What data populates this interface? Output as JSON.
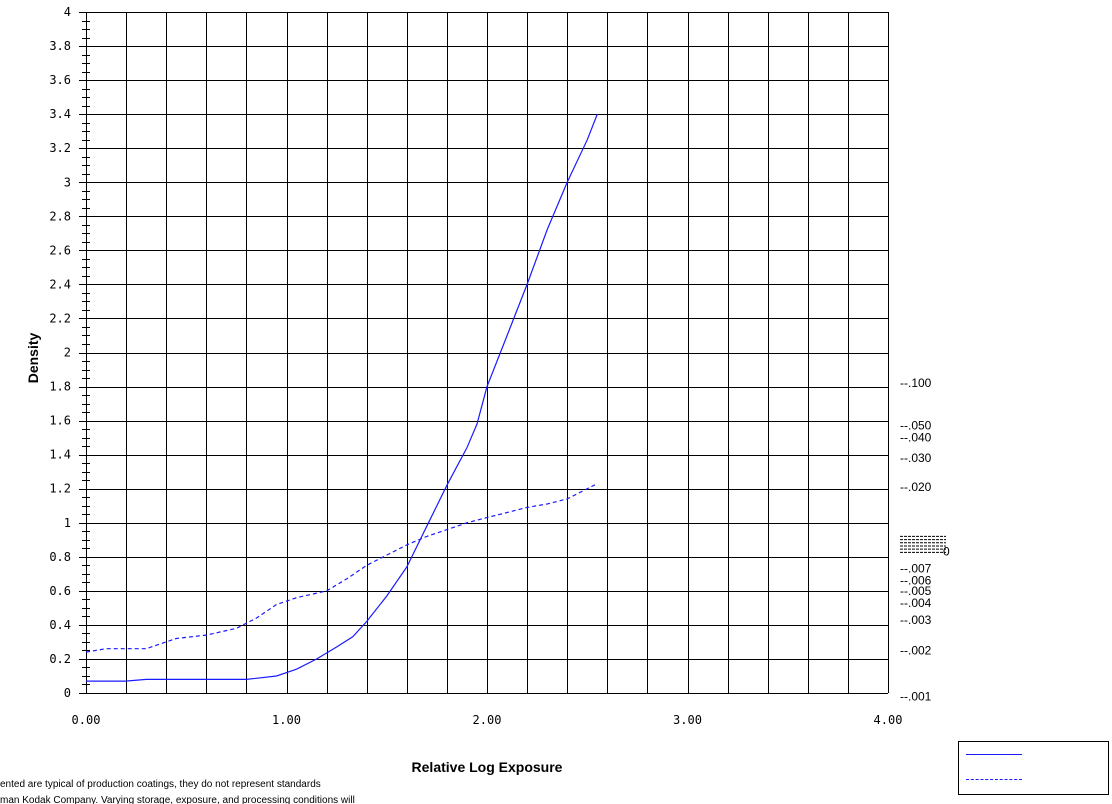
{
  "chart_data": {
    "type": "line",
    "xlabel": "Relative Log Exposure",
    "ylabel": "Density",
    "xlim": [
      0,
      4
    ],
    "ylim": [
      0,
      4
    ],
    "x_tick_labels": [
      "0.00",
      "1.00",
      "2.00",
      "3.00",
      "4.00"
    ],
    "y_tick_labels": [
      "0",
      "0.2",
      "0.4",
      "0.6",
      "0.8",
      "1",
      "1.2",
      "1.4",
      "1.6",
      "1.8",
      "2",
      "2.2",
      "2.4",
      "2.6",
      "2.8",
      "3",
      "3.2",
      "3.4",
      "3.6",
      "3.8",
      "4"
    ],
    "grid": true,
    "series": [
      {
        "style": "solid",
        "color": "#1a1aff",
        "points": [
          [
            0,
            0.07
          ],
          [
            0.2,
            0.07
          ],
          [
            0.3,
            0.08
          ],
          [
            0.5,
            0.08
          ],
          [
            0.8,
            0.08
          ],
          [
            0.95,
            0.1
          ],
          [
            1.05,
            0.14
          ],
          [
            1.15,
            0.2
          ],
          [
            1.25,
            0.27
          ],
          [
            1.33,
            0.33
          ],
          [
            1.4,
            0.42
          ],
          [
            1.5,
            0.57
          ],
          [
            1.6,
            0.74
          ],
          [
            1.7,
            0.98
          ],
          [
            1.8,
            1.22
          ],
          [
            1.9,
            1.44
          ],
          [
            1.95,
            1.58
          ],
          [
            2.0,
            1.8
          ],
          [
            2.1,
            2.1
          ],
          [
            2.2,
            2.4
          ],
          [
            2.3,
            2.72
          ],
          [
            2.4,
            3.0
          ],
          [
            2.5,
            3.25
          ],
          [
            2.55,
            3.4
          ]
        ]
      },
      {
        "style": "dashed",
        "color": "#1a1aff",
        "points": [
          [
            0,
            0.24
          ],
          [
            0.1,
            0.26
          ],
          [
            0.3,
            0.26
          ],
          [
            0.4,
            0.3
          ],
          [
            0.45,
            0.32
          ],
          [
            0.6,
            0.34
          ],
          [
            0.75,
            0.38
          ],
          [
            0.85,
            0.44
          ],
          [
            0.95,
            0.52
          ],
          [
            1.05,
            0.56
          ],
          [
            1.2,
            0.6
          ],
          [
            1.3,
            0.67
          ],
          [
            1.4,
            0.75
          ],
          [
            1.5,
            0.81
          ],
          [
            1.6,
            0.87
          ],
          [
            1.7,
            0.92
          ],
          [
            1.8,
            0.96
          ],
          [
            1.9,
            1.0
          ],
          [
            2.0,
            1.03
          ],
          [
            2.1,
            1.06
          ],
          [
            2.2,
            1.09
          ],
          [
            2.3,
            1.11
          ],
          [
            2.4,
            1.14
          ],
          [
            2.5,
            1.2
          ],
          [
            2.55,
            1.23
          ]
        ]
      }
    ],
    "right_scale_labels": [
      {
        "text": "--.100",
        "y": 1.82
      },
      {
        "text": "--.050",
        "y": 1.57
      },
      {
        "text": "--.040",
        "y": 1.5
      },
      {
        "text": "--.030",
        "y": 1.38
      },
      {
        "text": "--.020",
        "y": 1.21
      },
      {
        "text": "--.007",
        "y": 0.73
      },
      {
        "text": "--.006",
        "y": 0.66
      },
      {
        "text": "--.005",
        "y": 0.6
      },
      {
        "text": "--.004",
        "y": 0.53
      },
      {
        "text": "--.003",
        "y": 0.43
      },
      {
        "text": "--.002",
        "y": 0.25
      },
      {
        "text": "--.001",
        "y": -0.02
      }
    ],
    "right_scale_small_label": {
      "text": "0",
      "y": 0.83
    },
    "footnotes": [
      "ented are typical of production coatings, they do not represent standards",
      "man Kodak Company.  Varying storage, exposure, and processing conditions will"
    ]
  }
}
